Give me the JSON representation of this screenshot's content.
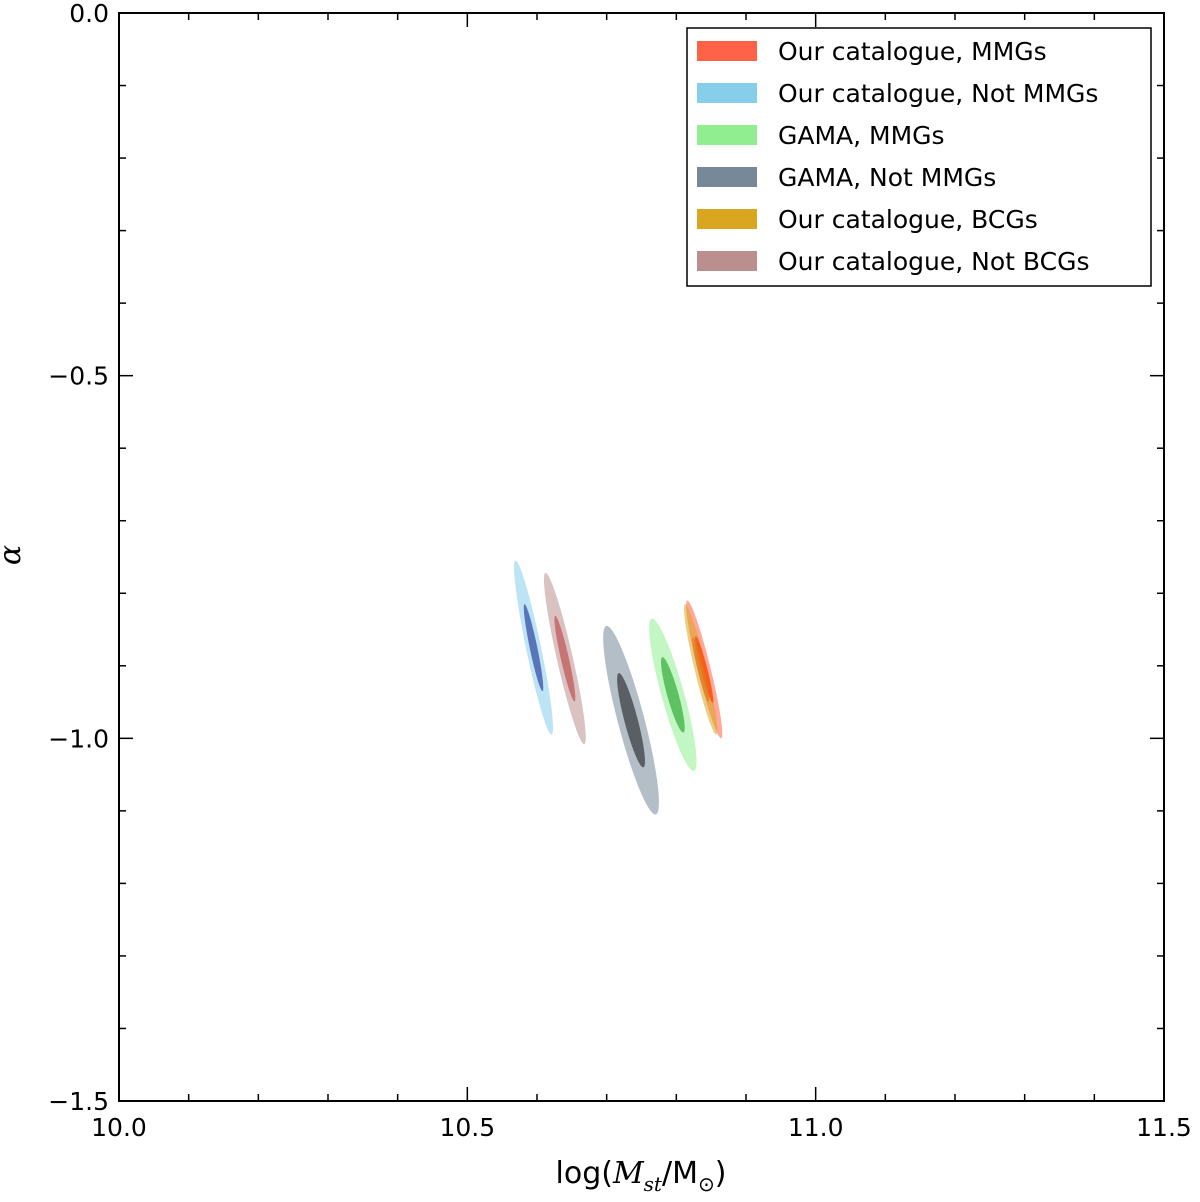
{
  "chart_data": {
    "type": "scatter",
    "subtype": "confidence-ellipses",
    "xlabel": {
      "prefix": "log(",
      "main": "M",
      "sub": "st",
      "slash": "/M",
      "sun": "⊙",
      "suffix": ")"
    },
    "ylabel": "α",
    "xlim": [
      10.0,
      11.5
    ],
    "ylim": [
      -1.5,
      0.0
    ],
    "x_ticks": [
      "10.0",
      "10.5",
      "11.0",
      "11.5"
    ],
    "y_ticks": [
      "0.0",
      "−0.5",
      "−1.0",
      "−1.5"
    ],
    "x_major": [
      10.0,
      10.5,
      11.0,
      11.5
    ],
    "y_major": [
      0.0,
      -0.5,
      -1.0,
      -1.5
    ],
    "x_minor": [
      10.1,
      10.2,
      10.3,
      10.4,
      10.6,
      10.7,
      10.8,
      10.9,
      11.1,
      11.2,
      11.3,
      11.4
    ],
    "y_minor": [
      -0.1,
      -0.2,
      -0.3,
      -0.4,
      -0.6,
      -0.7,
      -0.8,
      -0.9,
      -1.1,
      -1.2,
      -1.3,
      -1.4
    ],
    "grid": false,
    "legend_position": "top-right",
    "series": [
      {
        "name": "Our catalogue, MMGs",
        "color": "#ff6347",
        "inner_color": "#ff4500",
        "center": [
          10.84,
          -0.905
        ],
        "outer": {
          "sx": 0.026,
          "sy": 0.095,
          "rho": -0.93
        },
        "inner": {
          "sx": 0.013,
          "sy": 0.046,
          "rho": -0.93
        }
      },
      {
        "name": "Our catalogue, Not MMGs",
        "color": "#87ceeb",
        "inner_color": "#3a4fa8",
        "center": [
          10.595,
          -0.875
        ],
        "outer": {
          "sx": 0.028,
          "sy": 0.12,
          "rho": -0.92
        },
        "inner": {
          "sx": 0.014,
          "sy": 0.06,
          "rho": -0.92
        }
      },
      {
        "name": "GAMA, MMGs",
        "color": "#90ee90",
        "inner_color": "#3cb043",
        "center": [
          10.795,
          -0.94
        ],
        "outer": {
          "sx": 0.034,
          "sy": 0.105,
          "rho": -0.87
        },
        "inner": {
          "sx": 0.017,
          "sy": 0.052,
          "rho": -0.87
        }
      },
      {
        "name": "GAMA, Not MMGs",
        "color": "#778899",
        "inner_color": "#3c3f44",
        "center": [
          10.735,
          -0.975
        ],
        "outer": {
          "sx": 0.04,
          "sy": 0.13,
          "rho": -0.87
        },
        "inner": {
          "sx": 0.02,
          "sy": 0.065,
          "rho": -0.87
        }
      },
      {
        "name": "Our catalogue, BCGs",
        "color": "#daa520",
        "inner_color": "#e07a20",
        "center": [
          10.835,
          -0.905
        ],
        "outer": {
          "sx": 0.024,
          "sy": 0.09,
          "rho": -0.93
        },
        "inner": {
          "sx": 0.012,
          "sy": 0.045,
          "rho": -0.93
        }
      },
      {
        "name": "Our catalogue, Not BCGs",
        "color": "#bc8f8f",
        "inner_color": "#c25a5a",
        "center": [
          10.64,
          -0.89
        ],
        "outer": {
          "sx": 0.03,
          "sy": 0.118,
          "rho": -0.92
        },
        "inner": {
          "sx": 0.015,
          "sy": 0.059,
          "rho": -0.92
        }
      }
    ]
  }
}
